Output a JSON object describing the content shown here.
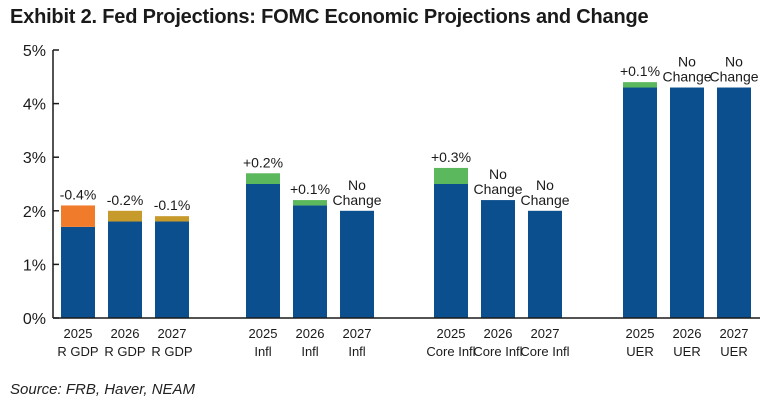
{
  "title": "Exhibit 2. Fed Projections: FOMC Economic Projections and Change",
  "source": "Source: FRB, Haver, NEAM",
  "colors": {
    "base": "#0b4f8f",
    "increase": "#5cb85c",
    "decrease": "#f07b2a",
    "decrease_small": "#c79a2c",
    "axis": "#1a1a1a"
  },
  "chart_data": {
    "type": "bar",
    "stacked": true,
    "title": "Exhibit 2. Fed Projections: FOMC Economic Projections and Change",
    "xlabel": "",
    "ylabel": "",
    "ylim": [
      0,
      5
    ],
    "yticks": [
      "0%",
      "1%",
      "2%",
      "3%",
      "4%",
      "5%"
    ],
    "grid": false,
    "groups": [
      {
        "bars": [
          {
            "year": "2025",
            "metric": "R GDP",
            "base": 1.7,
            "change": 0.4,
            "direction": "decrease",
            "label": "-0.4%"
          },
          {
            "year": "2026",
            "metric": "R GDP",
            "base": 1.8,
            "change": 0.2,
            "direction": "decrease",
            "label": "-0.2%"
          },
          {
            "year": "2027",
            "metric": "R GDP",
            "base": 1.8,
            "change": 0.1,
            "direction": "decrease",
            "label": "-0.1%"
          }
        ]
      },
      {
        "bars": [
          {
            "year": "2025",
            "metric": "Infl",
            "base": 2.5,
            "change": 0.2,
            "direction": "increase",
            "label": "+0.2%"
          },
          {
            "year": "2026",
            "metric": "Infl",
            "base": 2.1,
            "change": 0.1,
            "direction": "increase",
            "label": "+0.1%"
          },
          {
            "year": "2027",
            "metric": "Infl",
            "base": 2.0,
            "change": 0.0,
            "direction": "none",
            "label": "No Change"
          }
        ]
      },
      {
        "bars": [
          {
            "year": "2025",
            "metric": "Core Infl",
            "base": 2.5,
            "change": 0.3,
            "direction": "increase",
            "label": "+0.3%"
          },
          {
            "year": "2026",
            "metric": "Core Infl",
            "base": 2.2,
            "change": 0.0,
            "direction": "none",
            "label": "No Change"
          },
          {
            "year": "2027",
            "metric": "Core Infl",
            "base": 2.0,
            "change": 0.0,
            "direction": "none",
            "label": "No Change"
          }
        ]
      },
      {
        "bars": [
          {
            "year": "2025",
            "metric": "UER",
            "base": 4.3,
            "change": 0.1,
            "direction": "increase",
            "label": "+0.1%"
          },
          {
            "year": "2026",
            "metric": "UER",
            "base": 4.3,
            "change": 0.0,
            "direction": "none",
            "label": "No Change"
          },
          {
            "year": "2027",
            "metric": "UER",
            "base": 4.3,
            "change": 0.0,
            "direction": "none",
            "label": "No Change"
          }
        ]
      }
    ]
  }
}
